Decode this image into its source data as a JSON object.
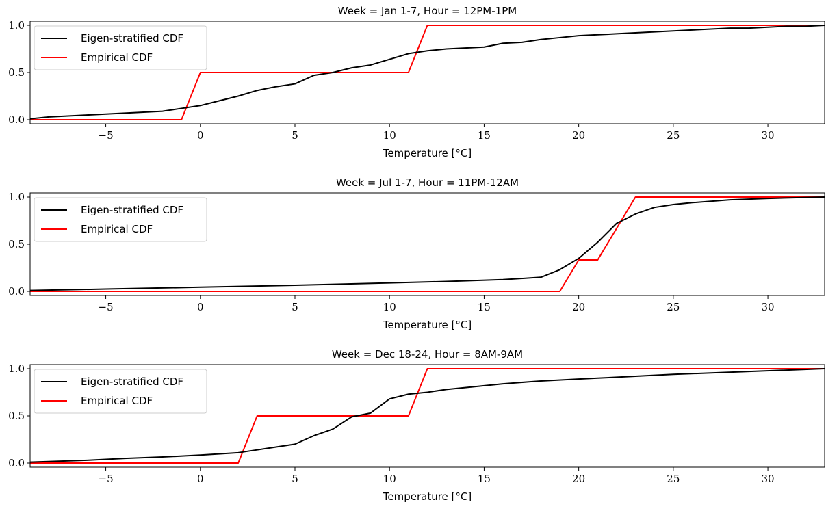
{
  "chart_data": [
    {
      "type": "line",
      "title": "Week = Jan 1-7, Hour = 12PM-1PM",
      "xlabel": "Temperature [°C]",
      "ylabel": "",
      "xlim": [
        -9,
        33
      ],
      "ylim": [
        0,
        1
      ],
      "xticks": [
        -5,
        0,
        5,
        10,
        15,
        20,
        25,
        30
      ],
      "xtick_labels": [
        "−5",
        "0",
        "5",
        "10",
        "15",
        "20",
        "25",
        "30"
      ],
      "yticks": [
        0,
        0.5,
        1
      ],
      "ytick_labels": [
        "0.0",
        "0.5",
        "1.0"
      ],
      "legend_position": "top-left",
      "grid": false,
      "series": [
        {
          "name": "Eigen-stratified CDF",
          "color": "#000000",
          "x": [
            -9,
            -8,
            -7,
            -6,
            -5,
            -4,
            -3,
            -2,
            -1,
            0,
            1,
            2,
            3,
            4,
            5,
            6,
            7,
            8,
            9,
            10,
            11,
            12,
            13,
            14,
            15,
            16,
            17,
            18,
            19,
            20,
            21,
            22,
            23,
            24,
            25,
            26,
            27,
            28,
            29,
            30,
            31,
            32,
            33
          ],
          "y": [
            0.01,
            0.03,
            0.04,
            0.05,
            0.06,
            0.07,
            0.08,
            0.09,
            0.12,
            0.15,
            0.2,
            0.25,
            0.31,
            0.35,
            0.38,
            0.47,
            0.5,
            0.55,
            0.58,
            0.64,
            0.7,
            0.73,
            0.75,
            0.76,
            0.77,
            0.81,
            0.82,
            0.85,
            0.87,
            0.89,
            0.9,
            0.91,
            0.92,
            0.93,
            0.94,
            0.95,
            0.96,
            0.97,
            0.97,
            0.98,
            0.99,
            0.99,
            1.0
          ]
        },
        {
          "name": "Empirical CDF",
          "color": "#ff0000",
          "x": [
            -9,
            -1,
            0,
            11,
            12,
            33
          ],
          "y": [
            0,
            0,
            0.5,
            0.5,
            1.0,
            1.0
          ]
        }
      ]
    },
    {
      "type": "line",
      "title": "Week = Jul 1-7, Hour = 11PM-12AM",
      "xlabel": "Temperature [°C]",
      "ylabel": "",
      "xlim": [
        -9,
        33
      ],
      "ylim": [
        0,
        1
      ],
      "xticks": [
        -5,
        0,
        5,
        10,
        15,
        20,
        25,
        30
      ],
      "xtick_labels": [
        "−5",
        "0",
        "5",
        "10",
        "15",
        "20",
        "25",
        "30"
      ],
      "yticks": [
        0,
        0.5,
        1
      ],
      "ytick_labels": [
        "0.0",
        "0.5",
        "1.0"
      ],
      "legend_position": "top-left",
      "grid": false,
      "series": [
        {
          "name": "Eigen-stratified CDF",
          "color": "#000000",
          "x": [
            -9,
            -5,
            0,
            5,
            10,
            13,
            16,
            18,
            19,
            20,
            21,
            22,
            23,
            24,
            25,
            26,
            28,
            30,
            33
          ],
          "y": [
            0.01,
            0.025,
            0.045,
            0.065,
            0.09,
            0.105,
            0.125,
            0.15,
            0.23,
            0.35,
            0.52,
            0.72,
            0.82,
            0.89,
            0.92,
            0.94,
            0.97,
            0.985,
            1.0
          ]
        },
        {
          "name": "Empirical CDF",
          "color": "#ff0000",
          "x": [
            -9,
            19,
            20,
            21,
            23,
            33
          ],
          "y": [
            0,
            0,
            0.333,
            0.333,
            1.0,
            1.0
          ]
        }
      ]
    },
    {
      "type": "line",
      "title": "Week = Dec 18-24, Hour = 8AM-9AM",
      "xlabel": "Temperature [°C]",
      "ylabel": "",
      "xlim": [
        -9,
        33
      ],
      "ylim": [
        0,
        1
      ],
      "xticks": [
        -5,
        0,
        5,
        10,
        15,
        20,
        25,
        30
      ],
      "xtick_labels": [
        "−5",
        "0",
        "5",
        "10",
        "15",
        "20",
        "25",
        "30"
      ],
      "yticks": [
        0,
        0.5,
        1
      ],
      "ytick_labels": [
        "0.0",
        "0.5",
        "1.0"
      ],
      "legend_position": "top-left",
      "grid": false,
      "series": [
        {
          "name": "Eigen-stratified CDF",
          "color": "#000000",
          "x": [
            -9,
            -6,
            -4,
            -2,
            0,
            2,
            3,
            4,
            5,
            6,
            7,
            8,
            9,
            10,
            11,
            12,
            13,
            14,
            15,
            16,
            18,
            20,
            21,
            23,
            25,
            27,
            29,
            31,
            33
          ],
          "y": [
            0.01,
            0.03,
            0.05,
            0.065,
            0.085,
            0.11,
            0.14,
            0.17,
            0.2,
            0.29,
            0.36,
            0.49,
            0.53,
            0.68,
            0.73,
            0.75,
            0.78,
            0.8,
            0.82,
            0.84,
            0.87,
            0.89,
            0.9,
            0.92,
            0.94,
            0.955,
            0.97,
            0.985,
            1.0
          ]
        },
        {
          "name": "Empirical CDF",
          "color": "#ff0000",
          "x": [
            -9,
            2,
            3,
            11,
            12,
            33
          ],
          "y": [
            0,
            0,
            0.5,
            0.5,
            1.0,
            1.0
          ]
        }
      ]
    }
  ]
}
